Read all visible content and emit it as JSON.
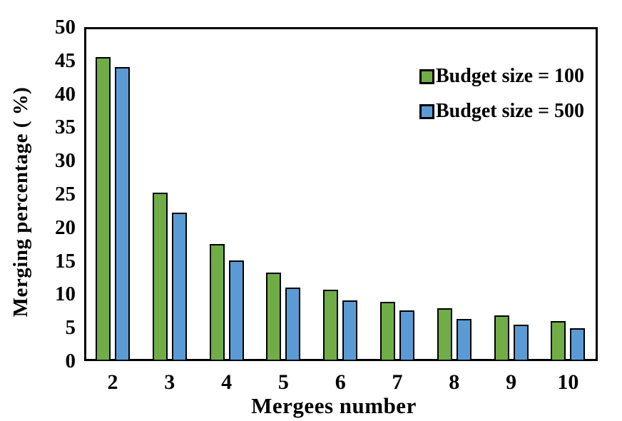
{
  "figure": {
    "background_color": "#ffffff",
    "axis_color": "#000000",
    "text_color": "#000000"
  },
  "chart_data": {
    "type": "bar",
    "title": "",
    "xlabel": "Mergees number",
    "ylabel": "Merging percentage ( %)",
    "categories": [
      "2",
      "3",
      "4",
      "5",
      "6",
      "7",
      "8",
      "9",
      "10"
    ],
    "series": [
      {
        "name": "Budget size = 100",
        "color": "#70AD47",
        "values": [
          45.5,
          25.2,
          17.5,
          13.3,
          10.7,
          8.9,
          7.9,
          6.8,
          6.0
        ]
      },
      {
        "name": "Budget size = 500",
        "color": "#5B9BD5",
        "values": [
          44.0,
          22.2,
          15.1,
          11.0,
          9.1,
          7.6,
          6.3,
          5.5,
          4.9
        ]
      }
    ],
    "ylim": [
      0,
      50
    ],
    "ytick_step": 5,
    "yticks": [
      "0",
      "5",
      "10",
      "15",
      "20",
      "25",
      "30",
      "35",
      "40",
      "45",
      "50"
    ],
    "grid": false,
    "legend_position": "upper-right-inside",
    "bar_outline_color": "#000000"
  }
}
